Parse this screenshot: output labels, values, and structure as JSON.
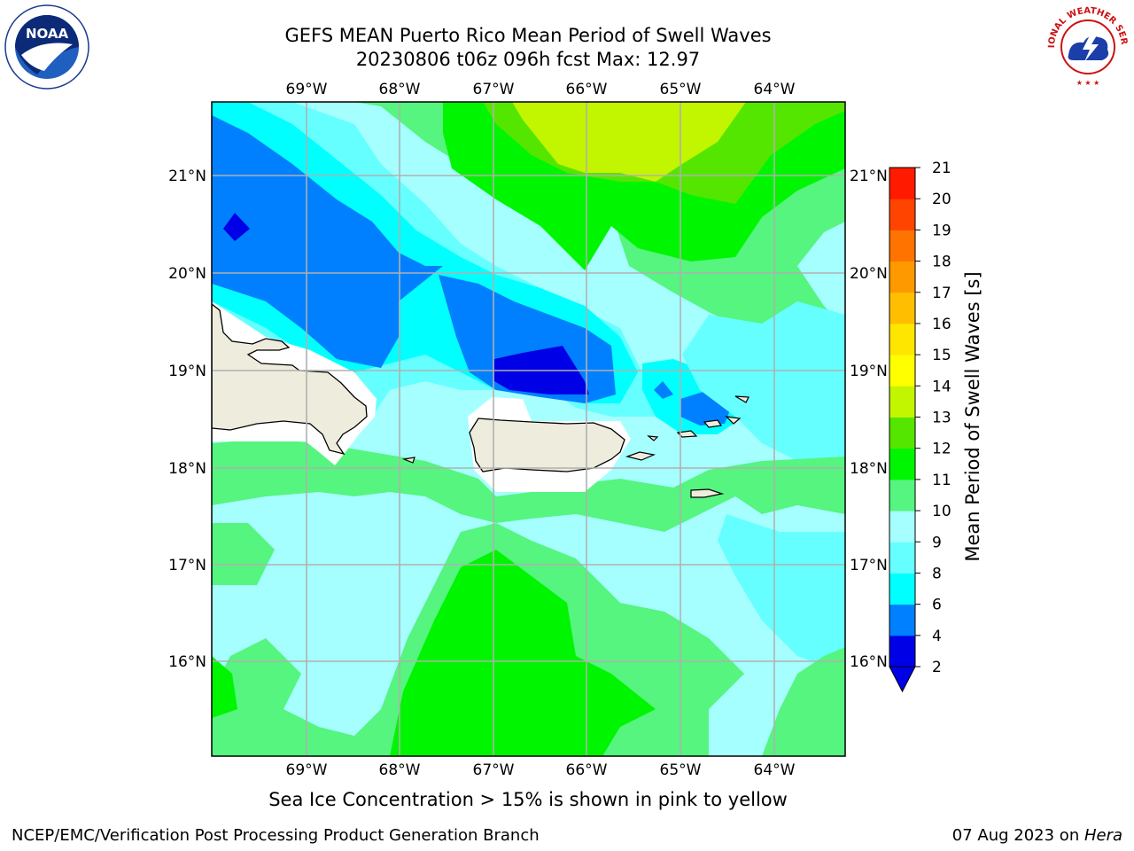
{
  "header": {
    "title_line1": "GEFS MEAN Puerto Rico Mean Period of Swell Waves",
    "title_line2": "20230806 t06z 096h fcst   Max: 12.97"
  },
  "logos": {
    "left": {
      "icon": "noaa-logo-icon",
      "text": "NOAA"
    },
    "right": {
      "icon": "nws-logo-icon",
      "text": "NATIONAL WEATHER SERVICE"
    }
  },
  "map": {
    "lon_labels": [
      "69°W",
      "68°W",
      "67°W",
      "66°W",
      "65°W",
      "64°W"
    ],
    "lat_labels": [
      "21°N",
      "20°N",
      "19°N",
      "18°N",
      "17°N",
      "16°N"
    ],
    "colors": {
      "land": "#eeecdc",
      "gridline": "#b0b0b0",
      "coast": "#000000"
    }
  },
  "colorbar": {
    "label": "Mean Period of Swell Waves [s]",
    "levels": [
      "2",
      "4",
      "6",
      "8",
      "9",
      "10",
      "11",
      "12",
      "13",
      "14",
      "15",
      "16",
      "17",
      "18",
      "19",
      "20",
      "21"
    ],
    "colors": [
      "#0000e6",
      "#0080ff",
      "#00ffff",
      "#66ffff",
      "#a6ffff",
      "#55f57f",
      "#00f500",
      "#55e600",
      "#c2f500",
      "#ffff00",
      "#ffe600",
      "#ffbf00",
      "#ff9900",
      "#ff7300",
      "#ff4400",
      "#ff1a00",
      "#ff0000"
    ],
    "extend_color": "#0000e6"
  },
  "footer": {
    "subtitle": "Sea Ice Concentration > 15% is shown in pink to yellow",
    "left": "NCEP/EMC/Verification Post Processing Product Generation Branch",
    "right_date": "07 Aug 2023 on ",
    "right_machine": "Hera"
  }
}
